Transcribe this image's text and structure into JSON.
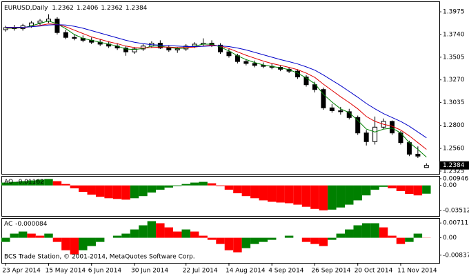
{
  "chart_data": [
    {
      "type": "candlestick",
      "symbol": "EURUSD,Daily",
      "xlim": [
        -0.5,
        50.5
      ],
      "xticks": [
        {
          "value": 0,
          "label": "23 Apr 2014"
        },
        {
          "value": 5,
          "label": "15 May 2014"
        },
        {
          "value": 10,
          "label": "6 Jun 2014"
        },
        {
          "value": 15,
          "label": "30 Jun 2014"
        },
        {
          "value": 21,
          "label": "22 Jul 2014"
        },
        {
          "value": 26,
          "label": "14 Aug 2014"
        },
        {
          "value": 31,
          "label": "4 Sep 2014"
        },
        {
          "value": 36,
          "label": "26 Sep 2014"
        },
        {
          "value": 41,
          "label": "20 Oct 2014"
        },
        {
          "value": 46,
          "label": "11 Nov 2014"
        }
      ],
      "ylim": [
        1.2296,
        1.4083
      ],
      "yticks": [
        1.3975,
        {
          "value": 1.374,
          "label": "1.3740"
        },
        1.3505,
        {
          "value": 1.327,
          "label": "1.3270"
        },
        1.3035,
        {
          "value": 1.28,
          "label": "1.2800"
        },
        {
          "value": 1.256,
          "label": "1.2560"
        },
        1.2325
      ],
      "last_price": 1.2384,
      "open": [
        1.379,
        1.381,
        1.38,
        1.383,
        1.386,
        1.388,
        1.39,
        1.376,
        1.371,
        1.37,
        1.368,
        1.366,
        1.364,
        1.362,
        1.36,
        1.356,
        1.359,
        1.362,
        1.365,
        1.36,
        1.358,
        1.359,
        1.362,
        1.364,
        1.365,
        1.363,
        1.356,
        1.352,
        1.346,
        1.344,
        1.342,
        1.341,
        1.34,
        1.338,
        1.336,
        1.33,
        1.322,
        1.317,
        1.298,
        1.295,
        1.294,
        1.288,
        1.272,
        1.263,
        1.278,
        1.284,
        1.272,
        1.262,
        1.25,
        1.2362
      ],
      "high": [
        1.383,
        1.384,
        1.385,
        1.388,
        1.39,
        1.395,
        1.392,
        1.379,
        1.374,
        1.373,
        1.371,
        1.369,
        1.367,
        1.365,
        1.362,
        1.361,
        1.364,
        1.367,
        1.368,
        1.363,
        1.361,
        1.364,
        1.366,
        1.37,
        1.368,
        1.365,
        1.359,
        1.354,
        1.348,
        1.347,
        1.345,
        1.344,
        1.342,
        1.34,
        1.338,
        1.332,
        1.325,
        1.319,
        1.302,
        1.299,
        1.297,
        1.29,
        1.275,
        1.289,
        1.287,
        1.285,
        1.274,
        1.264,
        1.258,
        1.2406
      ],
      "low": [
        1.377,
        1.378,
        1.378,
        1.381,
        1.384,
        1.386,
        1.374,
        1.369,
        1.368,
        1.366,
        1.364,
        1.362,
        1.36,
        1.358,
        1.352,
        1.354,
        1.357,
        1.36,
        1.359,
        1.356,
        1.355,
        1.357,
        1.36,
        1.362,
        1.361,
        1.354,
        1.35,
        1.344,
        1.342,
        1.34,
        1.339,
        1.338,
        1.336,
        1.334,
        1.328,
        1.32,
        1.314,
        1.296,
        1.293,
        1.291,
        1.286,
        1.27,
        1.259,
        1.26,
        1.276,
        1.27,
        1.26,
        1.248,
        1.246,
        1.2362
      ],
      "close": [
        1.381,
        1.38,
        1.383,
        1.386,
        1.388,
        1.39,
        1.376,
        1.371,
        1.37,
        1.368,
        1.366,
        1.364,
        1.362,
        1.36,
        1.356,
        1.359,
        1.362,
        1.365,
        1.36,
        1.358,
        1.359,
        1.362,
        1.364,
        1.365,
        1.363,
        1.356,
        1.352,
        1.346,
        1.344,
        1.342,
        1.341,
        1.34,
        1.338,
        1.336,
        1.33,
        1.322,
        1.317,
        1.298,
        1.295,
        1.294,
        1.288,
        1.272,
        1.263,
        1.278,
        1.284,
        1.272,
        1.262,
        1.25,
        1.248,
        1.2384
      ],
      "series": [
        {
          "color": "#008000",
          "values": [
            1.3805,
            1.3805,
            1.381,
            1.383,
            1.3855,
            1.388,
            1.385,
            1.38,
            1.374,
            1.37,
            1.368,
            1.366,
            1.364,
            1.362,
            1.359,
            1.3585,
            1.3595,
            1.362,
            1.362,
            1.3605,
            1.3595,
            1.36,
            1.362,
            1.364,
            1.364,
            1.361,
            1.357,
            1.352,
            1.348,
            1.345,
            1.3425,
            1.341,
            1.3395,
            1.3375,
            1.334,
            1.329,
            1.323,
            1.312,
            1.304,
            1.297,
            1.293,
            1.285,
            1.276,
            1.273,
            1.276,
            1.277,
            1.272,
            1.262,
            1.255,
            1.247
          ]
        },
        {
          "color": "#e00000",
          "values": [
            1.381,
            1.381,
            1.3812,
            1.382,
            1.3835,
            1.385,
            1.3845,
            1.382,
            1.3785,
            1.375,
            1.3715,
            1.369,
            1.3665,
            1.3645,
            1.362,
            1.3605,
            1.36,
            1.3605,
            1.361,
            1.361,
            1.3605,
            1.3605,
            1.361,
            1.362,
            1.363,
            1.362,
            1.3595,
            1.356,
            1.3525,
            1.3495,
            1.3465,
            1.344,
            1.342,
            1.34,
            1.3375,
            1.334,
            1.3295,
            1.3225,
            1.316,
            1.3095,
            1.3035,
            1.297,
            1.289,
            1.284,
            1.281,
            1.279,
            1.275,
            1.269,
            1.262,
            1.255
          ]
        },
        {
          "color": "#0000c8",
          "values": [
            1.3815,
            1.3815,
            1.3815,
            1.382,
            1.3828,
            1.3838,
            1.3842,
            1.3838,
            1.3825,
            1.3805,
            1.378,
            1.3755,
            1.373,
            1.3705,
            1.368,
            1.366,
            1.3645,
            1.3635,
            1.363,
            1.3625,
            1.362,
            1.3615,
            1.3615,
            1.3618,
            1.3622,
            1.3622,
            1.3615,
            1.36,
            1.358,
            1.3555,
            1.353,
            1.3505,
            1.348,
            1.3458,
            1.3435,
            1.3405,
            1.337,
            1.332,
            1.3265,
            1.321,
            1.315,
            1.309,
            1.3025,
            1.297,
            1.292,
            1.288,
            1.284,
            1.279,
            1.273,
            1.267
          ]
        }
      ]
    },
    {
      "type": "histogram-oscillator",
      "title": "AO",
      "ylim": [
        -0.0429,
        0.0133
      ],
      "yticks": [
        0.00946,
        {
          "value": 0,
          "label": "0.00"
        },
        -0.03512
      ],
      "up_color": "#008000",
      "down_color": "#ff0000",
      "values": [
        0.004,
        0.005,
        0.006,
        0.007,
        0.008,
        0.009,
        0.006,
        0.002,
        -0.004,
        -0.009,
        -0.013,
        -0.016,
        -0.018,
        -0.019,
        -0.02,
        -0.018,
        -0.015,
        -0.01,
        -0.006,
        -0.003,
        -0.001,
        0.002,
        0.004,
        0.005,
        0.003,
        -0.001,
        -0.006,
        -0.011,
        -0.015,
        -0.018,
        -0.021,
        -0.023,
        -0.024,
        -0.025,
        -0.027,
        -0.03,
        -0.033,
        -0.035,
        -0.034,
        -0.031,
        -0.027,
        -0.021,
        -0.014,
        -0.006,
        -0.002,
        -0.004,
        -0.008,
        -0.012,
        -0.014,
        -0.01162
      ]
    },
    {
      "type": "histogram-oscillator",
      "title": "AC",
      "ylim": [
        -0.0121,
        0.0095
      ],
      "yticks": [
        0.00711,
        {
          "value": 0,
          "label": "0.00"
        },
        -0.00837
      ],
      "up_color": "#008000",
      "down_color": "#ff0000",
      "annotation": "BCS Trade Station, © 2001-2014, MetaQuotes Software Corp.",
      "values": [
        -0.002,
        0.002,
        0.003,
        0.002,
        0.001,
        0.002,
        -0.002,
        -0.006,
        -0.008,
        -0.006,
        -0.004,
        -0.002,
        0.0,
        0.001,
        0.002,
        0.004,
        0.006,
        0.008,
        0.007,
        0.005,
        0.003,
        0.004,
        0.003,
        0.001,
        -0.001,
        -0.003,
        -0.006,
        -0.007,
        -0.005,
        -0.003,
        -0.002,
        -0.001,
        0.0,
        0.001,
        0.0,
        -0.002,
        -0.003,
        -0.004,
        -0.001,
        0.002,
        0.004,
        0.006,
        0.007,
        0.007,
        0.005,
        0.001,
        -0.003,
        -0.002,
        0.002,
        -8.4e-05
      ]
    }
  ]
}
